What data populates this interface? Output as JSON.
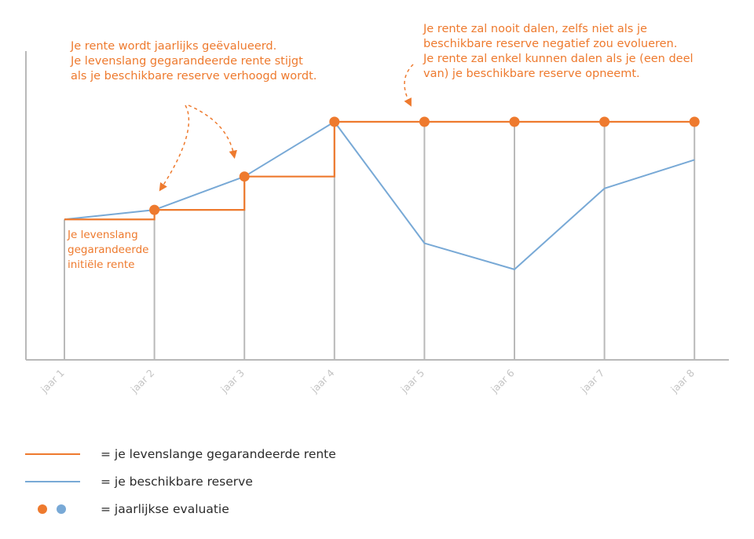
{
  "colors": {
    "guaranteed": "#ee7a2e",
    "reserve": "#78a9d6",
    "axis": "#b9b9b9",
    "tick_label": "#c4c4c4"
  },
  "annotations": {
    "top_left": [
      "Je rente wordt jaarlijks geëvalueerd.",
      "Je levenslang gegarandeerde rente stijgt",
      "als je beschikbare reserve verhoogd wordt."
    ],
    "top_right": [
      "Je rente zal nooit dalen, zelfs niet als je",
      "beschikbare reserve negatief zou evolueren.",
      "Je rente zal enkel kunnen dalen als je (een deel",
      "van) je beschikbare reserve opneemt."
    ],
    "initial": [
      "Je levenslang",
      "gegarandeerde",
      "initiële rente"
    ]
  },
  "legend": {
    "guaranteed_label": "= je levenslange gegarandeerde rente",
    "reserve_label": "= je beschikbare reserve",
    "evaluation_label": "= jaarlijkse evaluatie"
  },
  "chart_data": {
    "type": "line",
    "categories": [
      "jaar 1",
      "jaar 2",
      "jaar 3",
      "jaar 4",
      "jaar 5",
      "jaar 6",
      "jaar 7",
      "jaar 8"
    ],
    "ylim": [
      0,
      100
    ],
    "grid": false,
    "legend_position": "bottom-left",
    "series": [
      {
        "name": "je levenslange gegarandeerde rente",
        "kind": "step",
        "values": [
          59,
          63,
          77,
          100,
          100,
          100,
          100,
          100
        ],
        "evaluation_markers": [
          "jaar 2",
          "jaar 3",
          "jaar 4",
          "jaar 5",
          "jaar 6",
          "jaar 7",
          "jaar 8"
        ]
      },
      {
        "name": "je beschikbare reserve",
        "kind": "line",
        "values": [
          59,
          63,
          77,
          100,
          49,
          38,
          72,
          84
        ]
      }
    ]
  }
}
